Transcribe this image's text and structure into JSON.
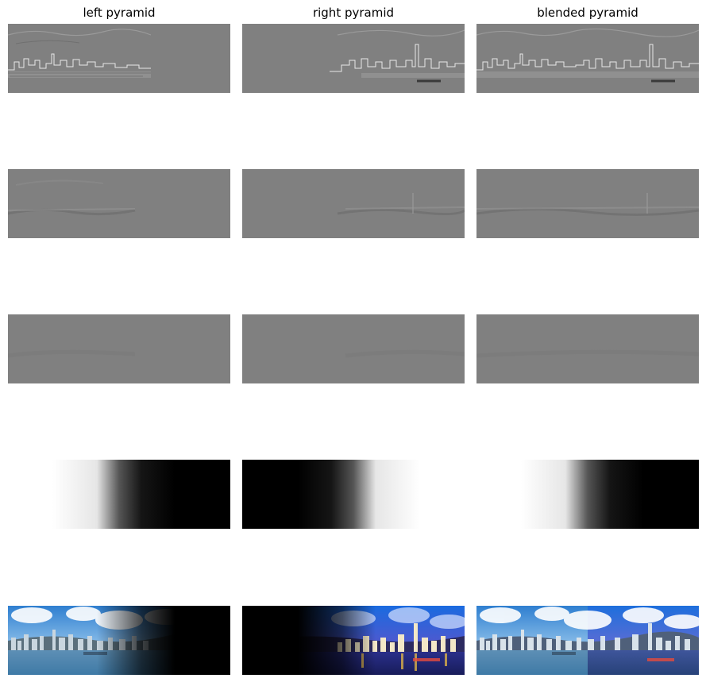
{
  "columns": [
    {
      "title": "left pyramid"
    },
    {
      "title": "right pyramid"
    },
    {
      "title": "blended pyramid"
    }
  ],
  "rows": [
    {
      "content": "laplacian-detail-level-1"
    },
    {
      "content": "laplacian-detail-level-2"
    },
    {
      "content": "laplacian-detail-level-3"
    },
    {
      "content": "mask-level"
    },
    {
      "content": "color-image-level"
    }
  ],
  "colors": {
    "detail_gray": "#808080",
    "mask_black": "#000000",
    "mask_white": "#ffffff",
    "sky_blue": "#3a8fd9",
    "night_blue": "#1a2a8a",
    "water_blue": "#4d8cb8"
  }
}
